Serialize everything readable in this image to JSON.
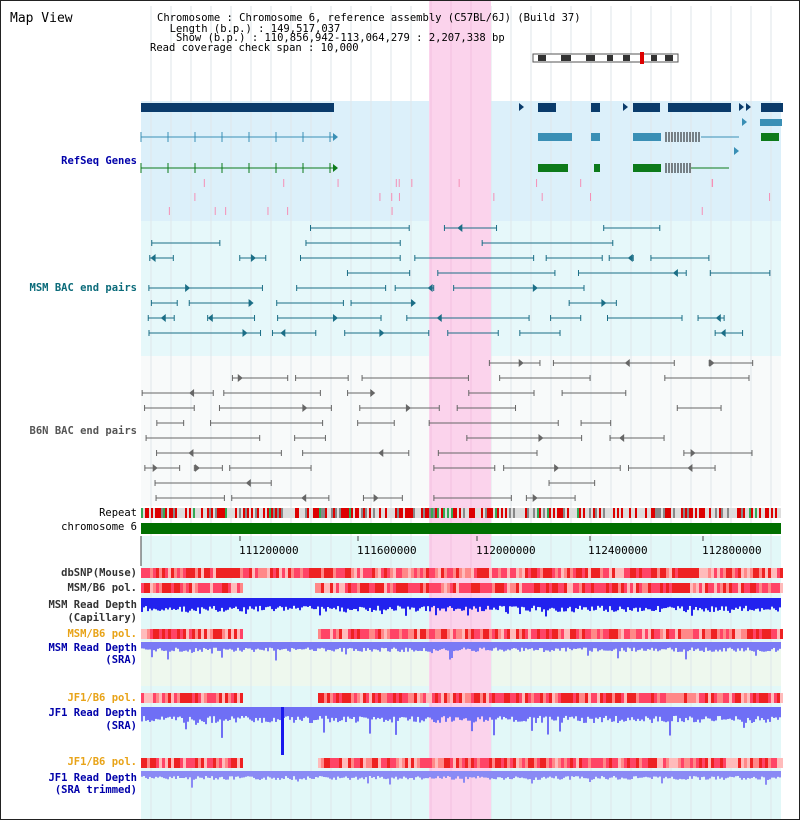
{
  "header": {
    "title": "Map View",
    "info_lines": [
      "Chromosome     : Chromosome 6, reference assembly (C57BL/6J) (Build 37)",
      "  Length (b.p.) : 149,517,037",
      "   Show (b.p.) : 110,856,942-113,064,279 : 2,207,338 bp",
      "Read coverage check span : 10,000"
    ]
  },
  "tracks": {
    "refseq": {
      "label": "RefSeq Genes",
      "color": "#0000aa"
    },
    "msm_bac": {
      "label": "MSM BAC end pairs",
      "color": "#0b6b7a"
    },
    "b6n_bac": {
      "label": "B6N BAC end pairs",
      "color": "#555555"
    },
    "repeat": {
      "label": "Repeat",
      "color": "#000000"
    },
    "chromosome": {
      "label": "chromosome 6",
      "color": "#000000"
    },
    "dbsnp": {
      "label": "dbSNP(Mouse)",
      "color": "#333333"
    },
    "msm_b6_pol": {
      "label": "MSM/B6 pol.",
      "color": "#333333"
    },
    "msm_depth_cap": {
      "label_1": "MSM Read Depth",
      "label_2": "(Capillary)",
      "color": "#333333"
    },
    "msm_b6_pol_sra": {
      "label": "MSM/B6 pol.",
      "color": "#e8a317"
    },
    "msm_depth_sra": {
      "label_1": "MSM Read Depth",
      "label_2": "(SRA)",
      "color": "#0000aa"
    },
    "jf1_b6_pol": {
      "label": "JF1/B6 pol.",
      "color": "#e8a317"
    },
    "jf1_depth_sra": {
      "label_1": "JF1 Read Depth",
      "label_2": "(SRA)",
      "color": "#0000aa"
    },
    "jf1_b6_pol_2": {
      "label": "JF1/B6 pol.",
      "color": "#e8a317"
    },
    "jf1_depth_trim": {
      "label_1": "JF1 Read Depth",
      "label_2": "(SRA trimmed)",
      "color": "#0000aa"
    }
  },
  "axis": {
    "ticks": [
      "111200000",
      "111600000",
      "112000000",
      "112400000",
      "112800000"
    ]
  },
  "colors": {
    "highlight": "#fbd3ec",
    "refseq_bg": "#dcf0fa",
    "bac_bg": "#e6f8fa",
    "gene_dark": "#0a3b6b",
    "gene_mid": "#3a8fb5",
    "gene_green": "#0d7a1a",
    "chromosome_bar": "#007000"
  }
}
